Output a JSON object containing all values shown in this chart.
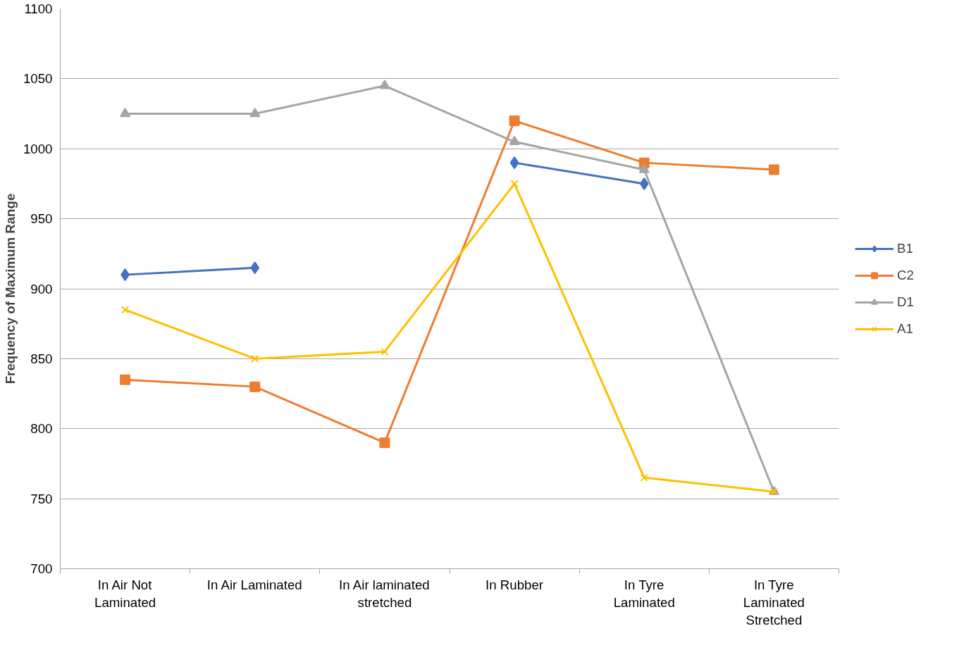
{
  "chart_data": {
    "type": "line",
    "ylabel": "Frequency of Maximum Range",
    "categories": [
      "In Air Not Laminated",
      "In Air Laminated",
      "In Air laminated stretched",
      "In Rubber",
      "In Tyre Laminated",
      "In Tyre Laminated Stretched"
    ],
    "series": [
      {
        "name": "B1",
        "color": "#4472c4",
        "marker": "diamond",
        "values": [
          910,
          915,
          null,
          990,
          975,
          null
        ]
      },
      {
        "name": "C2",
        "color": "#ed7d31",
        "marker": "square",
        "values": [
          835,
          830,
          790,
          1020,
          990,
          985
        ]
      },
      {
        "name": "D1",
        "color": "#a5a5a5",
        "marker": "triangle",
        "values": [
          1025,
          1025,
          1045,
          1005,
          985,
          755
        ]
      },
      {
        "name": "A1",
        "color": "#ffc000",
        "marker": "cross",
        "values": [
          885,
          850,
          855,
          975,
          765,
          755
        ]
      }
    ],
    "ylim": [
      700,
      1100
    ],
    "yticks": [
      700,
      750,
      800,
      850,
      900,
      950,
      1000,
      1050,
      1100
    ],
    "grid": "y",
    "legend": "right",
    "line_style": "solid"
  }
}
